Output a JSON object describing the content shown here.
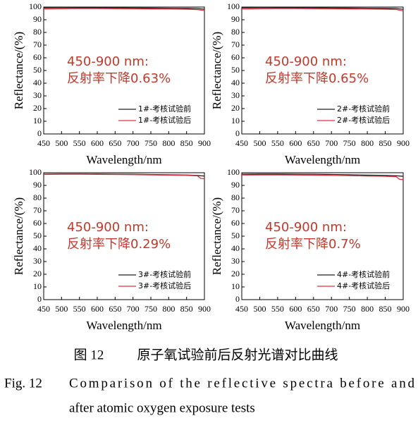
{
  "chart_data": [
    {
      "type": "line",
      "xlabel": "Wavelength/nm",
      "ylabel": "Reflectance/(%)",
      "annotation": [
        "450-900 nm:",
        "反射率下降0.63%"
      ],
      "x": [
        450,
        500,
        550,
        600,
        650,
        700,
        750,
        800,
        850,
        880,
        900
      ],
      "series": [
        {
          "name": "1#-考核试验前",
          "color": "#222222",
          "values": [
            99.4,
            99.5,
            99.5,
            99.4,
            99.4,
            99.3,
            99.2,
            99.1,
            99.0,
            98.8,
            98.3
          ]
        },
        {
          "name": "1#-考核试验后",
          "color": "#e03040",
          "values": [
            98.5,
            98.7,
            98.8,
            98.8,
            98.7,
            98.6,
            98.5,
            98.4,
            98.3,
            98.0,
            97.2
          ]
        }
      ],
      "xlim": [
        450,
        900
      ],
      "xticks": [
        450,
        500,
        550,
        600,
        650,
        700,
        750,
        800,
        850,
        900
      ],
      "ylim": [
        0,
        100
      ],
      "yticks": [
        0,
        10,
        20,
        30,
        40,
        50,
        60,
        70,
        80,
        90,
        100
      ]
    },
    {
      "type": "line",
      "xlabel": "Wavelength/nm",
      "ylabel": "Reflectance/(%)",
      "annotation": [
        "450-900 nm:",
        "反射率下降0.65%"
      ],
      "x": [
        450,
        500,
        550,
        600,
        650,
        700,
        750,
        800,
        850,
        880,
        900
      ],
      "series": [
        {
          "name": "2#-考核试验前",
          "color": "#222222",
          "values": [
            99.3,
            99.5,
            99.5,
            99.4,
            99.4,
            99.3,
            99.2,
            99.1,
            99.0,
            98.9,
            98.2
          ]
        },
        {
          "name": "2#-考核试验后",
          "color": "#e03040",
          "values": [
            98.4,
            98.7,
            98.8,
            98.8,
            98.7,
            98.6,
            98.5,
            98.4,
            98.3,
            98.1,
            96.9
          ]
        }
      ],
      "xlim": [
        450,
        900
      ],
      "xticks": [
        450,
        500,
        550,
        600,
        650,
        700,
        750,
        800,
        850,
        900
      ],
      "ylim": [
        0,
        100
      ],
      "yticks": [
        0,
        10,
        20,
        30,
        40,
        50,
        60,
        70,
        80,
        90,
        100
      ]
    },
    {
      "type": "line",
      "xlabel": "Wavelength/nm",
      "ylabel": "Reflectance/(%)",
      "annotation": [
        "450-900 nm:",
        "反射率下降0.29%"
      ],
      "x": [
        450,
        500,
        550,
        600,
        650,
        700,
        750,
        800,
        850,
        880,
        890,
        900
      ],
      "series": [
        {
          "name": "3#-考核试验前",
          "color": "#222222",
          "values": [
            98.9,
            99.1,
            99.1,
            99.0,
            98.9,
            98.8,
            98.6,
            98.4,
            98.2,
            97.9,
            97.6,
            97.4
          ]
        },
        {
          "name": "3#-考核试验后",
          "color": "#e03040",
          "values": [
            98.6,
            98.8,
            98.8,
            98.7,
            98.6,
            98.5,
            98.3,
            98.1,
            97.9,
            97.6,
            95.5,
            95.2
          ]
        }
      ],
      "xlim": [
        450,
        900
      ],
      "xticks": [
        450,
        500,
        550,
        600,
        650,
        700,
        750,
        800,
        850,
        900
      ],
      "ylim": [
        0,
        100
      ],
      "yticks": [
        0,
        10,
        20,
        30,
        40,
        50,
        60,
        70,
        80,
        90,
        100
      ]
    },
    {
      "type": "line",
      "xlabel": "Wavelength/nm",
      "ylabel": "Reflectance/(%)",
      "annotation": [
        "450-900 nm:",
        "反射率下降0.7%"
      ],
      "x": [
        450,
        500,
        550,
        600,
        650,
        700,
        750,
        800,
        850,
        880,
        890,
        900
      ],
      "series": [
        {
          "name": "4#-考核试验前",
          "color": "#222222",
          "values": [
            98.9,
            99.0,
            99.0,
            98.9,
            98.8,
            98.6,
            98.4,
            98.1,
            97.9,
            97.6,
            97.4,
            97.2
          ]
        },
        {
          "name": "4#-考核试验后",
          "color": "#e03040",
          "values": [
            98.2,
            98.3,
            98.3,
            98.2,
            98.1,
            97.9,
            97.7,
            97.4,
            97.2,
            96.9,
            94.8,
            94.6
          ]
        }
      ],
      "xlim": [
        450,
        900
      ],
      "xticks": [
        450,
        500,
        550,
        600,
        650,
        700,
        750,
        800,
        850,
        900
      ],
      "ylim": [
        0,
        100
      ],
      "yticks": [
        0,
        10,
        20,
        30,
        40,
        50,
        60,
        70,
        80,
        90,
        100
      ]
    }
  ],
  "caption": {
    "zh_label": "图 12",
    "zh_title": "原子氧试验前后反射光谱对比曲线",
    "en_label": "Fig. 12",
    "en_line1": "Comparison of the reflective spectra before and",
    "en_line2": "after atomic oxygen exposure tests"
  }
}
